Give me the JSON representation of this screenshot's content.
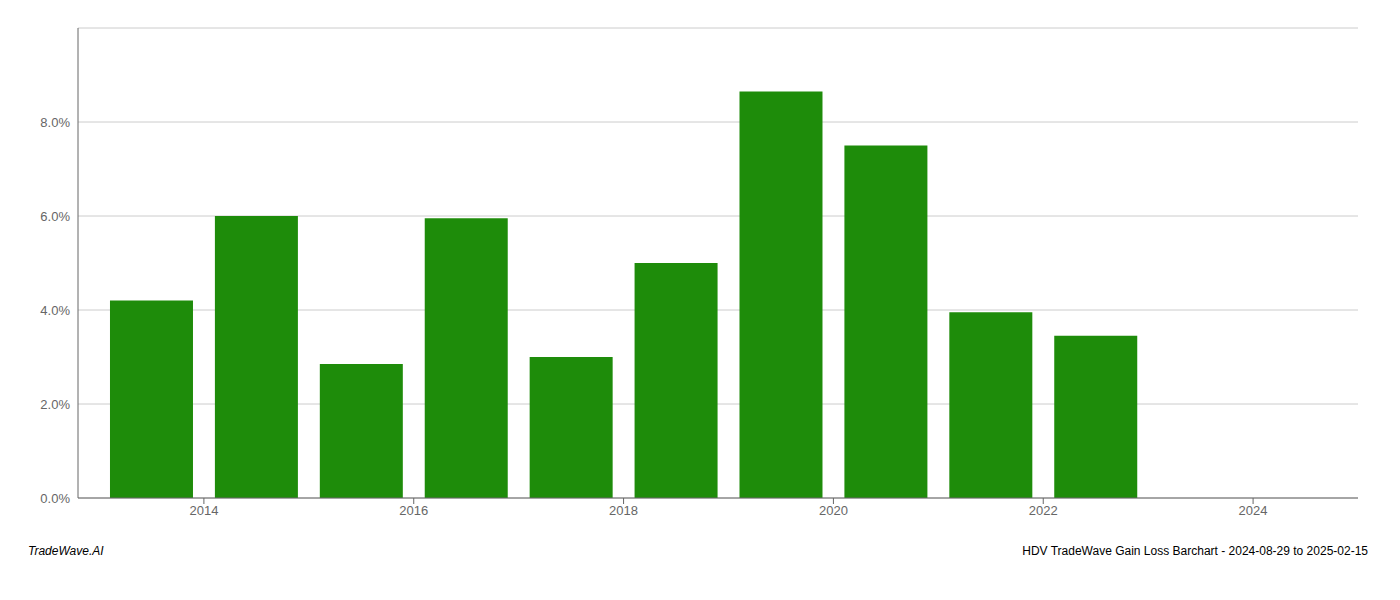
{
  "chart_data": {
    "type": "bar",
    "x": [
      2013,
      2014,
      2015,
      2016,
      2017,
      2018,
      2019,
      2020,
      2021,
      2022
    ],
    "values": [
      0.042,
      0.06,
      0.0285,
      0.0595,
      0.03,
      0.05,
      0.0865,
      0.075,
      0.0395,
      0.0345
    ],
    "color": "#1e8c0a",
    "xlim": [
      2012.3,
      2024.5
    ],
    "xticks": [
      {
        "value": 2013.5,
        "label": "2014"
      },
      {
        "value": 2015.5,
        "label": "2016"
      },
      {
        "value": 2017.5,
        "label": "2018"
      },
      {
        "value": 2019.5,
        "label": "2020"
      },
      {
        "value": 2021.5,
        "label": "2022"
      },
      {
        "value": 2023.5,
        "label": "2024"
      }
    ],
    "ylim": [
      0,
      0.1
    ],
    "yticks": [
      {
        "value": 0.0,
        "label": "0.0%"
      },
      {
        "value": 0.02,
        "label": "2.0%"
      },
      {
        "value": 0.04,
        "label": "4.0%"
      },
      {
        "value": 0.06,
        "label": "6.0%"
      },
      {
        "value": 0.08,
        "label": "8.0%"
      }
    ],
    "grid": true,
    "annotations": [
      "TradeWave.AI",
      "HDV TradeWave Gain Loss Barchart - 2024-08-29 to 2025-02-15"
    ]
  }
}
